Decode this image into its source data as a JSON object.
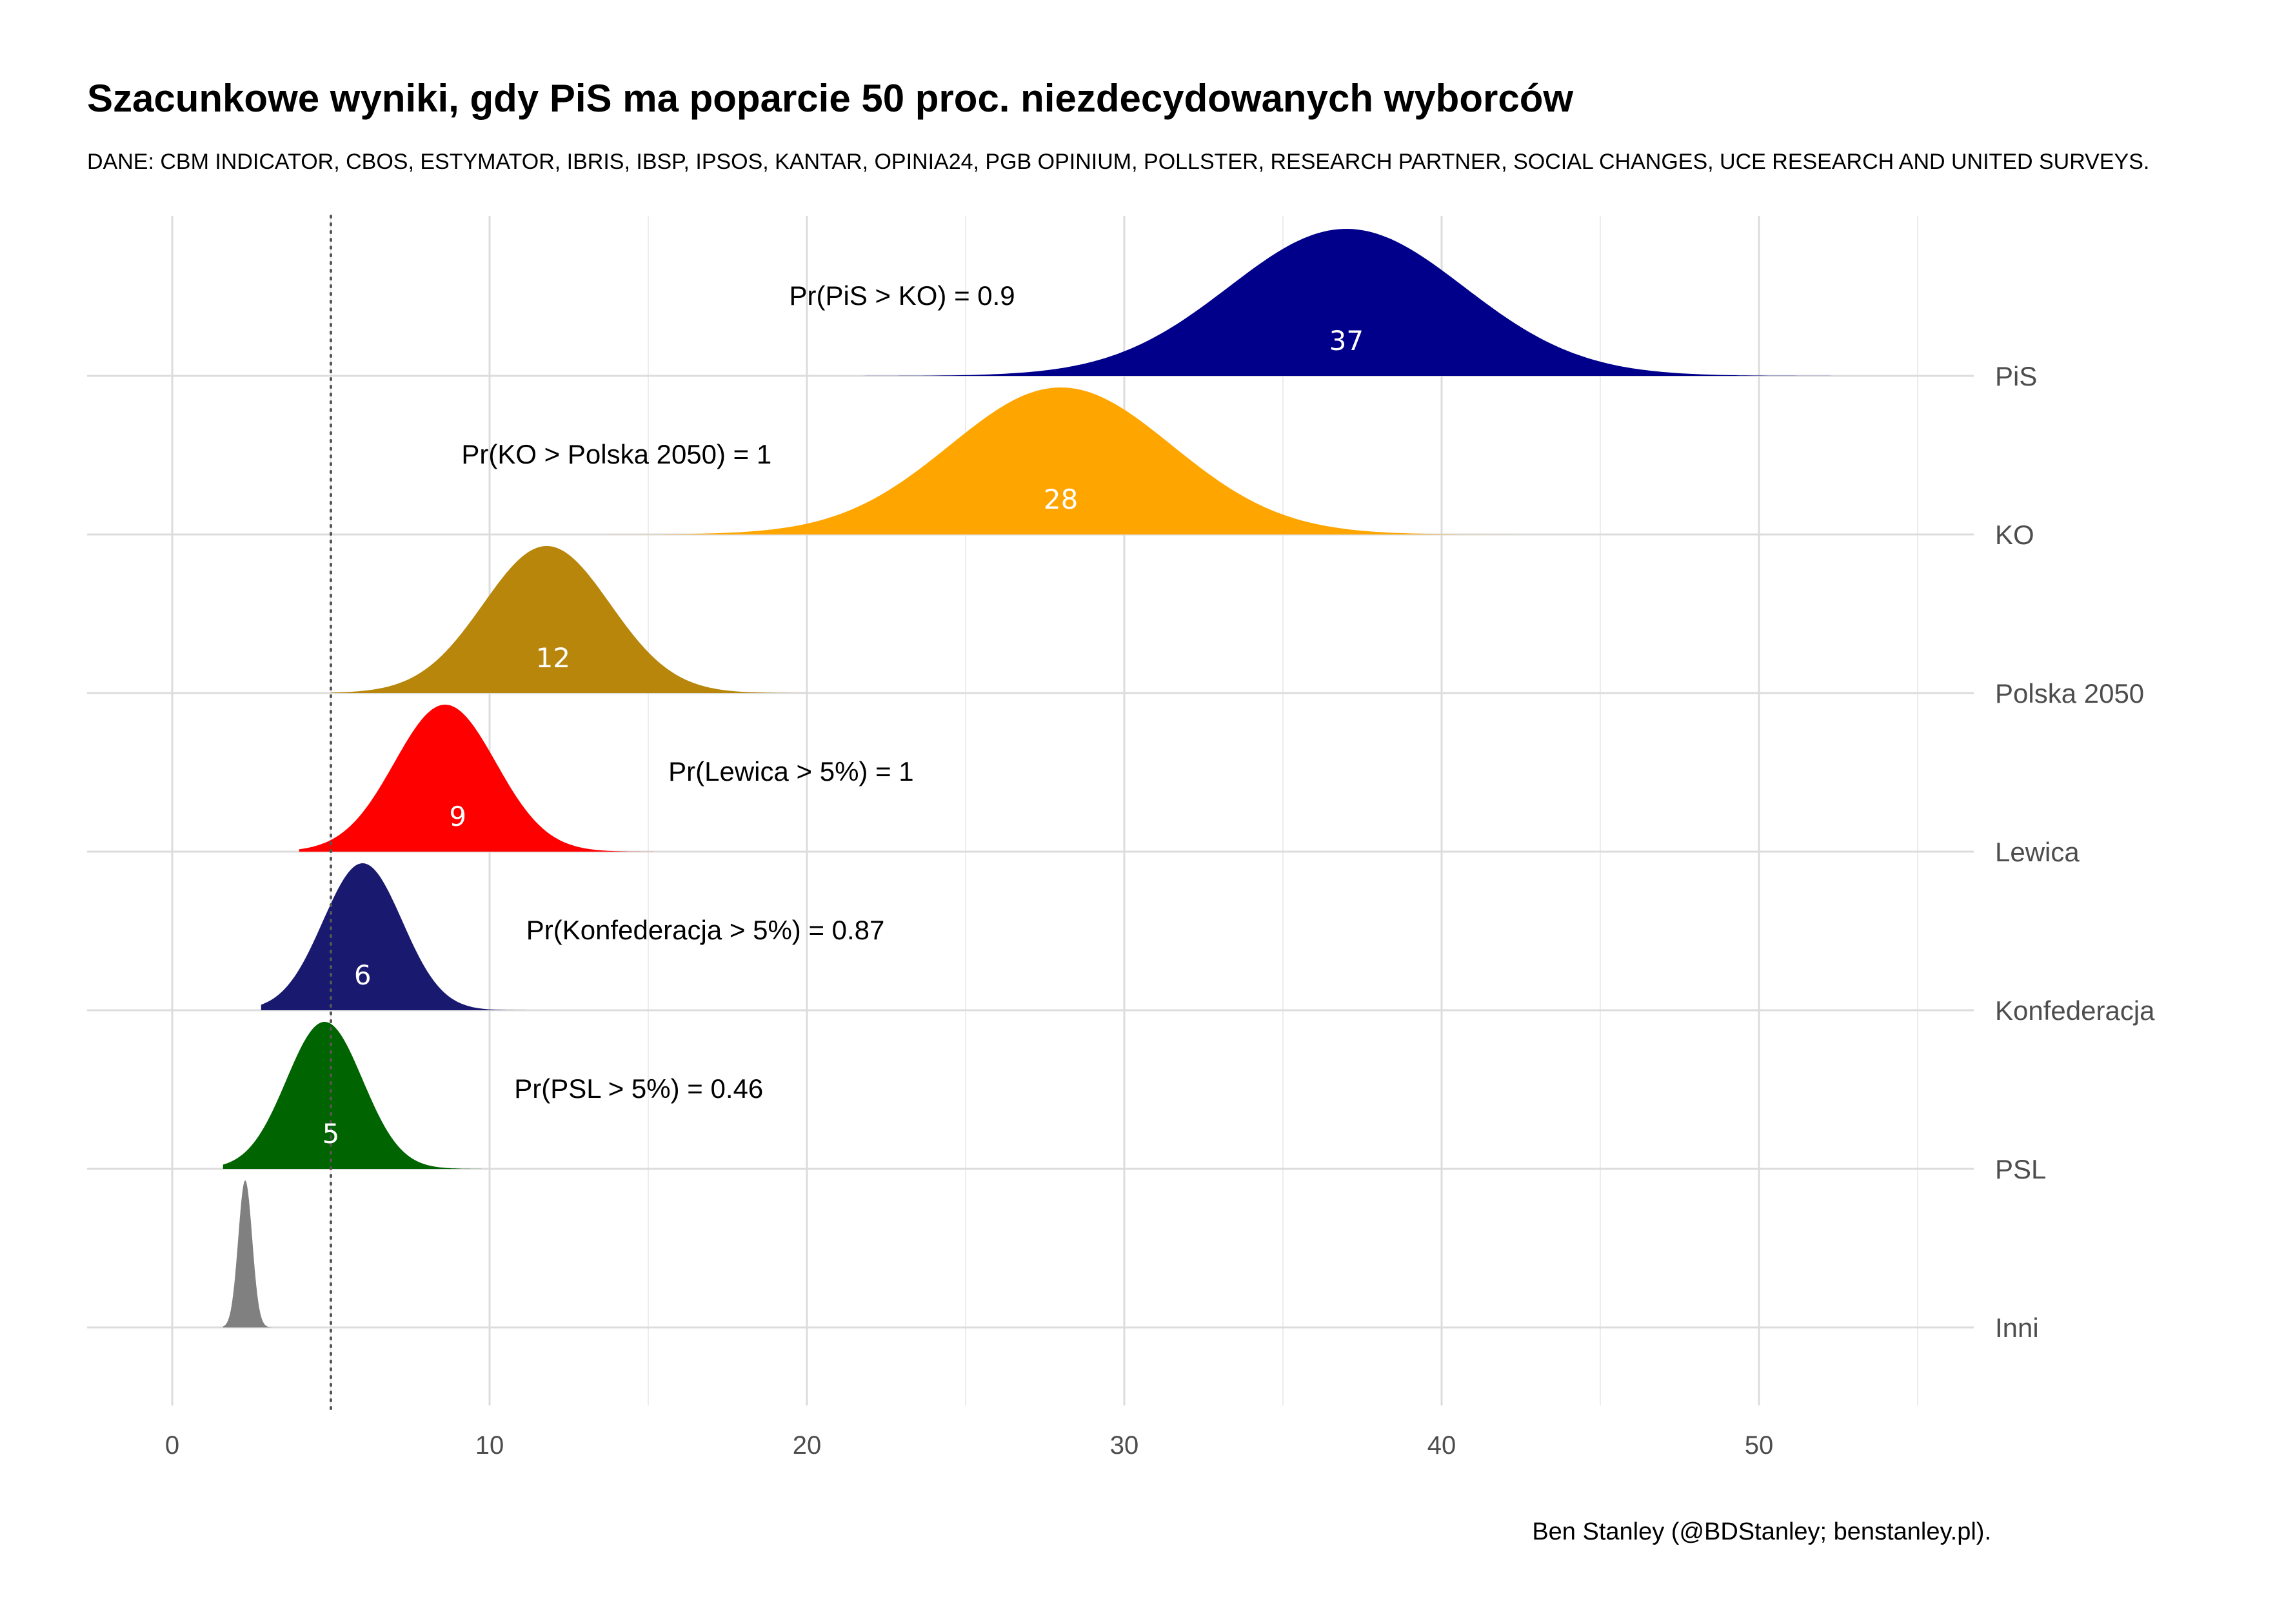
{
  "chart_data": {
    "type": "ridgeline",
    "title": "Szacunkowe wyniki, gdy PiS ma poparcie 50 proc. niezdecydowanych wyborców",
    "subtitle": "DANE: CBM INDICATOR, CBOS, ESTYMATOR, IBRIS, IBSP, IPSOS, KANTAR, OPINIA24, PGB OPINIUM, POLLSTER, RESEARCH PARTNER, SOCIAL CHANGES, UCE RESEARCH AND UNITED SURVEYS.",
    "caption": "Ben Stanley (@BDStanley; benstanley.pl).",
    "xlim": [
      -2.7,
      55.5
    ],
    "x_ticks": [
      "0",
      "10",
      "20",
      "30",
      "40",
      "50"
    ],
    "x_tick_values": [
      0,
      10,
      20,
      30,
      40,
      50
    ],
    "threshold": 5,
    "grid": true,
    "series": [
      {
        "name": "PiS",
        "mean": 37,
        "mean_label": "37",
        "min": 20.5,
        "max": 54.5,
        "peak": 37,
        "sd": 3.7,
        "color": "#00008B",
        "probability": {
          "label": "Pr(PiS > KO)  =  0.9",
          "x": 23
        }
      },
      {
        "name": "KO",
        "mean": 28,
        "mean_label": "28",
        "min": 13,
        "max": 44,
        "peak": 28,
        "sd": 3.5,
        "color": "#FFA500",
        "probability": {
          "label": "Pr(KO > Polska 2050)  =  1",
          "x": 14
        }
      },
      {
        "name": "Polska 2050",
        "mean": 12,
        "mean_label": "12",
        "min": 5,
        "max": 21,
        "peak": 11.8,
        "sd": 2.0,
        "color": "#B8860B",
        "probability": null
      },
      {
        "name": "Lewica",
        "mean": 9,
        "mean_label": "9",
        "min": 4,
        "max": 18,
        "peak": 8.6,
        "sd": 1.6,
        "color": "#FF0000",
        "probability": {
          "label": "Pr(Lewica > 5%)  =  1",
          "x": 19.5
        }
      },
      {
        "name": "Konfederacja",
        "mean": 6,
        "mean_label": "6",
        "min": 2.8,
        "max": 14,
        "peak": 6.0,
        "sd": 1.25,
        "color": "#191970",
        "probability": {
          "label": "Pr(Konfederacja > 5%)  =  0.87",
          "x": 16.8
        }
      },
      {
        "name": "PSL",
        "mean": 5,
        "mean_label": "5",
        "min": 1.6,
        "max": 11,
        "peak": 4.8,
        "sd": 1.2,
        "color": "#006400",
        "probability": {
          "label": "Pr(PSL > 5%)  =  0.46",
          "x": 14.7
        }
      },
      {
        "name": "Inni",
        "mean": 2.3,
        "mean_label": "",
        "min": 1.6,
        "max": 3.2,
        "peak": 2.3,
        "sd": 0.22,
        "color": "#808080",
        "probability": null
      }
    ]
  }
}
